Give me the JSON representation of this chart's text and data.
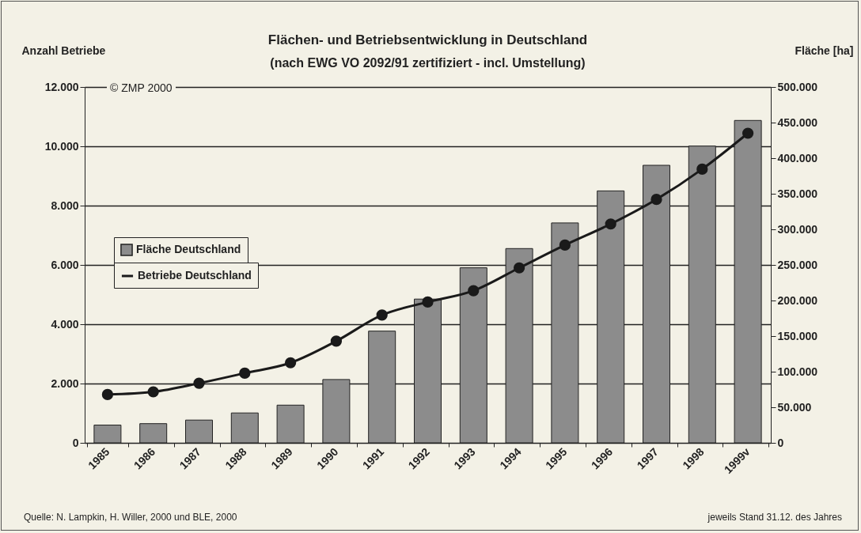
{
  "chart_data": {
    "type": "bar",
    "title": "Flächen- und Betriebsentwicklung in Deutschland",
    "subtitle": "(nach EWG VO 2092/91 zertifiziert - incl. Umstellung)",
    "ylabel": "Anzahl Betriebe",
    "y2label": "Fläche [ha]",
    "categories": [
      "1985",
      "1986",
      "1987",
      "1988",
      "1989",
      "1990",
      "1991",
      "1992",
      "1993",
      "1994",
      "1995",
      "1996",
      "1997",
      "1998",
      "1999v"
    ],
    "series": [
      {
        "name": "Fläche Deutschland",
        "axis": "y2",
        "color": "#8c8c8c",
        "values": [
          25000,
          27000,
          32000,
          42000,
          53000,
          89000,
          157000,
          202000,
          246000,
          273000,
          309000,
          354000,
          390000,
          417000,
          453000
        ]
      },
      {
        "name": "Betriebe Deutschland",
        "type": "line",
        "color": "#1a1a1a",
        "marker": "circle",
        "values": [
          1630,
          1720,
          2010,
          2350,
          2700,
          3430,
          4310,
          4750,
          5130,
          5900,
          6670,
          7380,
          8210,
          9230,
          10440
        ]
      }
    ],
    "ylim": [
      0,
      12000
    ],
    "yticks": [
      0,
      {
        "value": 2000,
        "label": "2.000"
      },
      {
        "value": 4000,
        "label": "4.000"
      },
      {
        "value": 6000,
        "label": "6.000"
      },
      {
        "value": 8000,
        "label": "8.000"
      },
      {
        "value": 10000,
        "label": "10.000"
      },
      {
        "value": 12000,
        "label": "12.000"
      }
    ],
    "y2lim": [
      0,
      500000
    ],
    "y2ticks": [
      0,
      {
        "value": 50000,
        "label": "50.000"
      },
      {
        "value": 100000,
        "label": "100.000"
      },
      {
        "value": 150000,
        "label": "150.000"
      },
      {
        "value": 200000,
        "label": "200.000"
      },
      {
        "value": 250000,
        "label": "250.000"
      },
      {
        "value": 300000,
        "label": "300.000"
      },
      {
        "value": 350000,
        "label": "350.000"
      },
      {
        "value": 400000,
        "label": "400.000"
      },
      {
        "value": 450000,
        "label": "450.000"
      },
      {
        "value": 500000,
        "label": "500.000"
      }
    ],
    "grid": "y",
    "legend": "left",
    "annotations": [
      "© ZMP 2000",
      "Quelle: N. Lampkin, H. Willer, 2000 und BLE, 2000",
      "jeweils Stand 31.12. des Jahres"
    ]
  }
}
